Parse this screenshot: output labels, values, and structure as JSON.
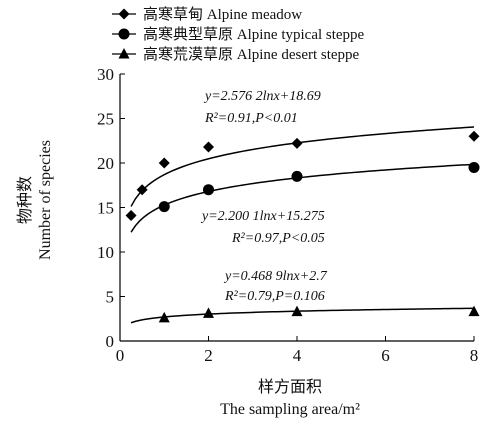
{
  "chart_data": {
    "type": "scatter",
    "title": "",
    "xlabel_cn": "样方面积",
    "xlabel_en": "The sampling area/m²",
    "ylabel_cn": "物种数",
    "ylabel_en": "Number of species",
    "xlim": [
      0,
      8
    ],
    "ylim": [
      0,
      30
    ],
    "xticks": [
      0,
      2,
      4,
      6,
      8
    ],
    "yticks": [
      0,
      5,
      10,
      15,
      20,
      25,
      30
    ],
    "grid": false,
    "legend_position": "top",
    "series": [
      {
        "name": "高寒草甸 Alpine meadow",
        "marker": "diamond",
        "x": [
          0.25,
          0.5,
          1,
          2,
          4,
          8
        ],
        "y": [
          14.1,
          17,
          20,
          21.8,
          22.2,
          23
        ],
        "fit": {
          "a": 2.5762,
          "b": 18.69,
          "x_range": [
            0.25,
            8
          ]
        },
        "equation": "y=2.576 2lnx+18.69",
        "r2": "R²=0.91,P<0.01"
      },
      {
        "name": "高寒典型草原 Alpine typical steppe",
        "marker": "circle",
        "x": [
          1,
          2,
          4,
          8
        ],
        "y": [
          15.1,
          17,
          18.5,
          19.5
        ],
        "fit": {
          "a": 2.2001,
          "b": 15.275,
          "x_range": [
            0.25,
            8
          ]
        },
        "equation": "y=2.200 1lnx+15.275",
        "r2": "R²=0.97,P<0.05"
      },
      {
        "name": "高寒荒漠草原 Alpine desert steppe",
        "marker": "triangle",
        "x": [
          1,
          2,
          4,
          8
        ],
        "y": [
          2.6,
          3.1,
          3.3,
          3.3
        ],
        "fit": {
          "a": 0.4689,
          "b": 2.7,
          "x_range": [
            0.25,
            8
          ]
        },
        "equation": "y=0.468 9lnx+2.7",
        "r2": "R²=0.79,P=0.106"
      }
    ]
  }
}
